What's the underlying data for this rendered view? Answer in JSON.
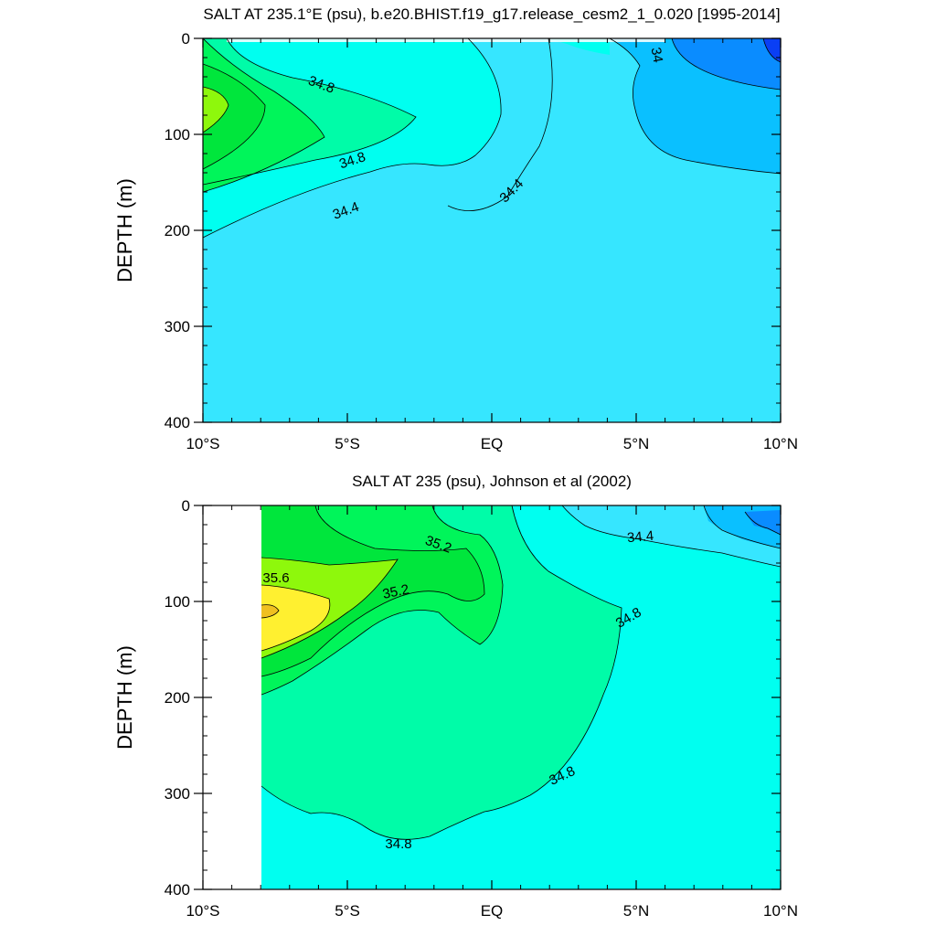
{
  "chart_data": [
    {
      "type": "contour",
      "title": "SALT AT 235.1°E (psu), b.e20.BHIST.f19_g17.release_cesm2_1_0.020 [1995-2014]",
      "xlabel": "",
      "ylabel": "DEPTH (m)",
      "xlim": [
        -10,
        10
      ],
      "ylim": [
        0,
        400
      ],
      "y_inverted": true,
      "x_ticks": [
        {
          "value": -10,
          "label": "10°S"
        },
        {
          "value": -5,
          "label": "5°S"
        },
        {
          "value": 0,
          "label": "EQ"
        },
        {
          "value": 5,
          "label": "5°N"
        },
        {
          "value": 10,
          "label": "10°N"
        }
      ],
      "y_ticks": [
        0,
        100,
        200,
        300,
        400
      ],
      "y_tick_labels": [
        "0",
        "100",
        "200",
        "300",
        "400"
      ],
      "contour_levels": [
        34.0,
        34.2,
        34.4,
        34.6,
        34.8,
        35.0,
        35.2,
        35.4
      ],
      "contour_labels": [
        "34.8",
        "34.8",
        "34.4",
        "34.4",
        "34"
      ],
      "colors": {
        "lt_34.0": "#0a3ff5",
        "34.0_34.2": "#0a8cff",
        "34.2_34.4": "#0ac0ff",
        "34.4_34.6": "#36e6ff",
        "34.6_34.8": "#00fff0",
        "34.8_35.0": "#00fca8",
        "35.0_35.2": "#00f55a",
        "35.2_35.4": "#00e63c",
        "35.4_35.6": "#8ef80c"
      }
    },
    {
      "type": "contour",
      "title": "SALT AT 235 (psu), Johnson et al (2002)",
      "xlabel": "",
      "ylabel": "DEPTH (m)",
      "xlim": [
        -10,
        10
      ],
      "ylim": [
        0,
        400
      ],
      "y_inverted": true,
      "data_x_start": -8,
      "x_ticks": [
        {
          "value": -10,
          "label": "10°S"
        },
        {
          "value": -5,
          "label": "5°S"
        },
        {
          "value": 0,
          "label": "EQ"
        },
        {
          "value": 5,
          "label": "5°N"
        },
        {
          "value": 10,
          "label": "10°N"
        }
      ],
      "y_ticks": [
        0,
        100,
        200,
        300,
        400
      ],
      "y_tick_labels": [
        "0",
        "100",
        "200",
        "300",
        "400"
      ],
      "contour_levels": [
        34.0,
        34.2,
        34.4,
        34.6,
        34.8,
        35.0,
        35.2,
        35.4,
        35.6,
        35.8
      ],
      "contour_labels": [
        "35.2",
        "35.6",
        "35.2",
        "34.4",
        "34.8",
        "34.8",
        "34.8"
      ],
      "colors": {
        "34.0_34.2": "#0a8cff",
        "34.2_34.4": "#0ac0ff",
        "34.4_34.6": "#36e6ff",
        "34.6_34.8": "#00fff0",
        "34.8_35.0": "#00fca8",
        "35.0_35.2": "#00f55a",
        "35.2_35.4": "#00e63c",
        "35.4_35.6": "#8ef80c",
        "35.6_35.8": "#fff030",
        "gt_35.8": "#f0c020"
      }
    }
  ]
}
